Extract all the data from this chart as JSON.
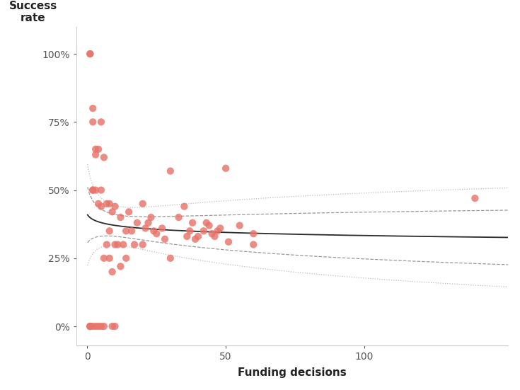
{
  "scatter_x": [
    1,
    1,
    2,
    2,
    3,
    3,
    4,
    5,
    5,
    6,
    6,
    7,
    8,
    8,
    9,
    9,
    10,
    10,
    11,
    12,
    12,
    13,
    14,
    14,
    15,
    16,
    17,
    18,
    20,
    20,
    21,
    22,
    23,
    24,
    25,
    27,
    28,
    30,
    30,
    33,
    35,
    36,
    37,
    38,
    39,
    40,
    42,
    43,
    44,
    45,
    46,
    47,
    48,
    50,
    51,
    55,
    60,
    60,
    140,
    1,
    1,
    2,
    2,
    3,
    4,
    5,
    1,
    2,
    3,
    4,
    5,
    6,
    7,
    8,
    9,
    10
  ],
  "scatter_y": [
    1.0,
    1.0,
    0.8,
    0.75,
    0.65,
    0.63,
    0.65,
    0.75,
    0.5,
    0.62,
    0.25,
    0.45,
    0.45,
    0.35,
    0.42,
    0.2,
    0.44,
    0.3,
    0.3,
    0.4,
    0.22,
    0.3,
    0.35,
    0.25,
    0.42,
    0.35,
    0.3,
    0.38,
    0.45,
    0.3,
    0.36,
    0.38,
    0.4,
    0.35,
    0.34,
    0.36,
    0.32,
    0.57,
    0.25,
    0.4,
    0.44,
    0.33,
    0.35,
    0.38,
    0.32,
    0.33,
    0.35,
    0.38,
    0.37,
    0.34,
    0.33,
    0.35,
    0.36,
    0.58,
    0.31,
    0.37,
    0.3,
    0.34,
    0.47,
    0.0,
    0.0,
    0.5,
    0.5,
    0.5,
    0.0,
    0.44,
    0.0,
    0.0,
    0.0,
    0.45,
    0.0,
    0.0,
    0.3,
    0.25,
    0.0,
    0.0
  ],
  "dot_color": "#e8746a",
  "dot_size": 55,
  "trend_color": "#2a2a2a",
  "ci_inner_color": "#999999",
  "ci_outer_color": "#bbbbbb",
  "xlabel": "Funding decisions",
  "ylabel": "Success\nrate",
  "xlim": [
    -4,
    152
  ],
  "ylim": [
    -0.07,
    1.1
  ],
  "xticks": [
    0,
    50,
    100
  ],
  "yticks": [
    0.0,
    0.25,
    0.5,
    0.75,
    1.0
  ],
  "yticklabels": [
    "0%",
    "25%",
    "50%",
    "75%",
    "100%"
  ],
  "xticklabels": [
    "0",
    "50",
    "100"
  ],
  "background_color": "#ffffff"
}
